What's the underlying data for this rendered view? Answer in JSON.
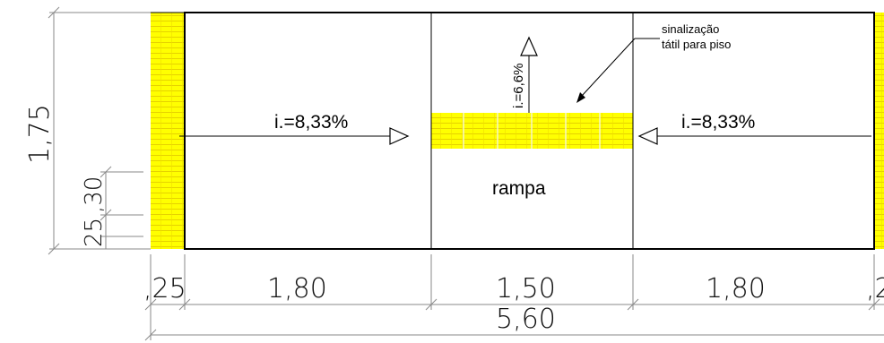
{
  "drawing": {
    "labels": {
      "slope_left": "i.=8,33%",
      "slope_right": "i.=8,33%",
      "slope_middle": "i.=6,6%",
      "ramp": "rampa",
      "tactile_line1": "sinalização",
      "tactile_line2": "tátil para piso"
    },
    "dimensions": {
      "height_total": "1,75",
      "left_strip": ",25",
      "bay_left": "1,80",
      "bay_middle": "1,50",
      "bay_right": "1,80",
      "right_strip_partial": ",2",
      "overall": "5,60",
      "vertical_small_a": ",30",
      "vertical_small_b": "25"
    },
    "colors": {
      "tactile": "#ffff00",
      "tactile_grid": "#e6d200",
      "outline": "#000000",
      "dimension_line": "#8a8a8a"
    }
  }
}
